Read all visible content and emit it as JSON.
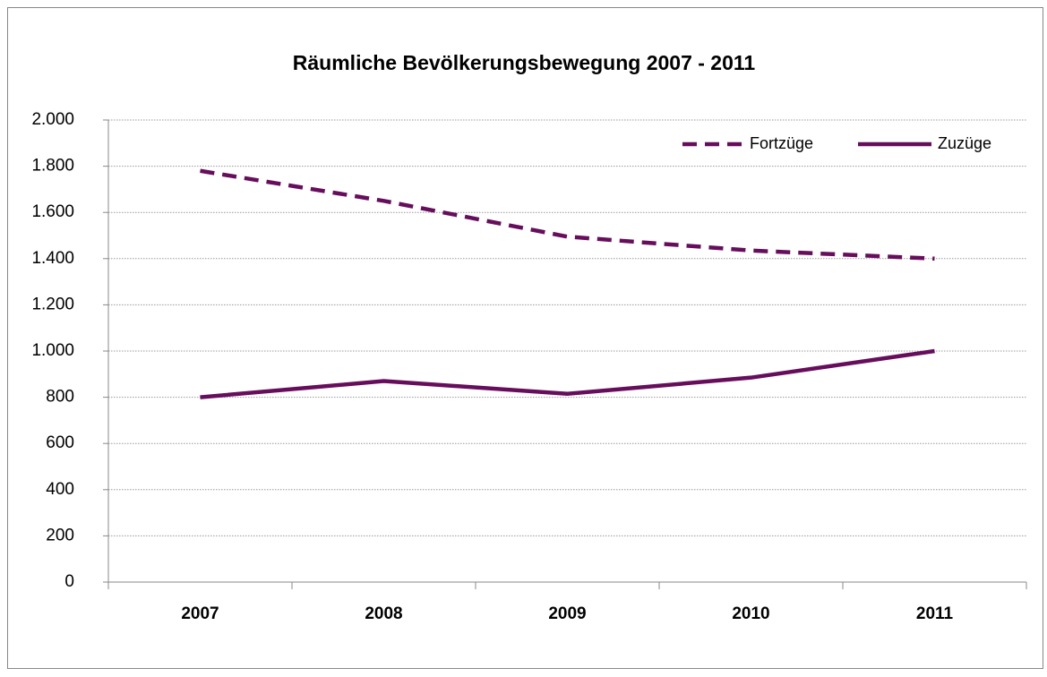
{
  "chart_data": {
    "type": "line",
    "title": "Räumliche Bevölkerungsbewegung 2007 - 2011",
    "categories": [
      "2007",
      "2008",
      "2009",
      "2010",
      "2011"
    ],
    "series": [
      {
        "name": "Fortzüge",
        "color": "#660e5c",
        "linestyle": "dashed",
        "values": [
          1780,
          1650,
          1495,
          1435,
          1400
        ]
      },
      {
        "name": "Zuzüge",
        "color": "#660e5c",
        "linestyle": "solid",
        "values": [
          800,
          870,
          815,
          885,
          1000
        ]
      }
    ],
    "ylim": [
      0,
      2000
    ],
    "yticks": [
      0,
      200,
      400,
      600,
      800,
      {
        "value": 1000,
        "label": "1.000"
      },
      {
        "value": 1200,
        "label": "1.200"
      },
      {
        "value": 1400,
        "label": "1.400"
      },
      {
        "value": 1600,
        "label": "1.600"
      },
      {
        "value": 1800,
        "label": "1.800"
      },
      {
        "value": 2000,
        "label": "2.000"
      }
    ],
    "grid": true,
    "legend": "top-right"
  }
}
